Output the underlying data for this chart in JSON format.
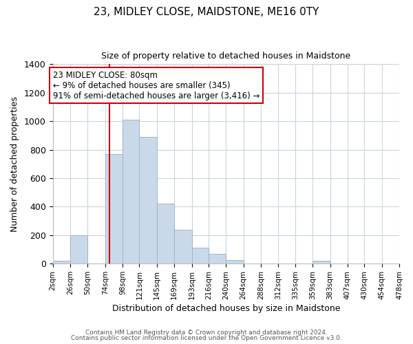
{
  "title": "23, MIDLEY CLOSE, MAIDSTONE, ME16 0TY",
  "subtitle": "Size of property relative to detached houses in Maidstone",
  "xlabel": "Distribution of detached houses by size in Maidstone",
  "ylabel": "Number of detached properties",
  "bar_edges": [
    2,
    26,
    50,
    74,
    98,
    121,
    145,
    169,
    193,
    216,
    240,
    264,
    288,
    312,
    335,
    359,
    383,
    407,
    430,
    454,
    478
  ],
  "bar_heights": [
    20,
    200,
    0,
    770,
    1010,
    890,
    420,
    240,
    110,
    70,
    25,
    0,
    0,
    0,
    0,
    20,
    0,
    0,
    0,
    0
  ],
  "tick_labels": [
    "2sqm",
    "26sqm",
    "50sqm",
    "74sqm",
    "98sqm",
    "121sqm",
    "145sqm",
    "169sqm",
    "193sqm",
    "216sqm",
    "240sqm",
    "264sqm",
    "288sqm",
    "312sqm",
    "335sqm",
    "359sqm",
    "383sqm",
    "407sqm",
    "430sqm",
    "454sqm",
    "478sqm"
  ],
  "bar_color": "#c9d9ea",
  "bar_edgecolor": "#9ab5cc",
  "vline_x": 80,
  "vline_color": "#cc0000",
  "annotation_title": "23 MIDLEY CLOSE: 80sqm",
  "annotation_line1": "← 9% of detached houses are smaller (345)",
  "annotation_line2": "91% of semi-detached houses are larger (3,416) →",
  "annotation_box_edgecolor": "#cc0000",
  "ylim": [
    0,
    1400
  ],
  "yticks": [
    0,
    200,
    400,
    600,
    800,
    1000,
    1200,
    1400
  ],
  "footer1": "Contains HM Land Registry data © Crown copyright and database right 2024.",
  "footer2": "Contains public sector information licensed under the Open Government Licence v3.0.",
  "bg_color": "#ffffff",
  "grid_color": "#c8d4de",
  "title_fontsize": 11,
  "subtitle_fontsize": 9,
  "xlabel_fontsize": 9,
  "ylabel_fontsize": 9,
  "tick_fontsize": 7.5,
  "footer_fontsize": 6.5,
  "annotation_fontsize": 8.5
}
